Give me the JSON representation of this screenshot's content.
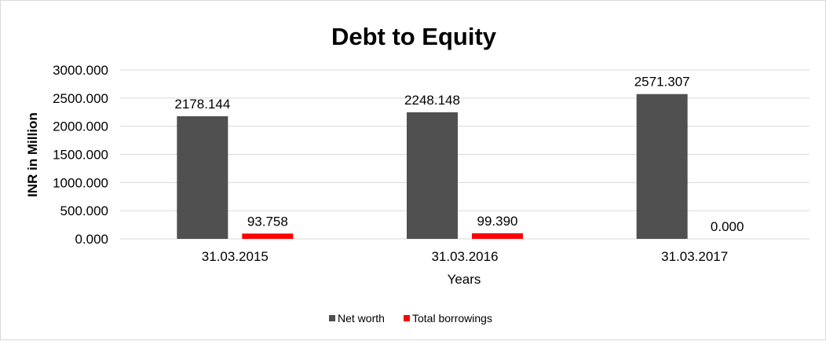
{
  "chart_data": {
    "type": "bar",
    "title": "Debt to Equity",
    "xlabel": "Years",
    "ylabel": "INR in Million",
    "categories": [
      "31.03.2015",
      "31.03.2016",
      "31.03.2017"
    ],
    "series": [
      {
        "name": "Net worth",
        "color": "#505050",
        "values": [
          2178.144,
          2248.148,
          2571.307
        ],
        "labels": [
          "2178.144",
          "2248.148",
          "2571.307"
        ]
      },
      {
        "name": "Total borrowings",
        "color": "#ff0000",
        "values": [
          93.758,
          99.39,
          0.0
        ],
        "labels": [
          "93.758",
          "99.390",
          "0.000"
        ]
      }
    ],
    "ylim": [
      0,
      3000
    ],
    "yticks": [
      "0.000",
      "500.000",
      "1000.000",
      "1500.000",
      "2000.000",
      "2500.000",
      "3000.000"
    ],
    "grid": true,
    "legend": "bottom"
  }
}
